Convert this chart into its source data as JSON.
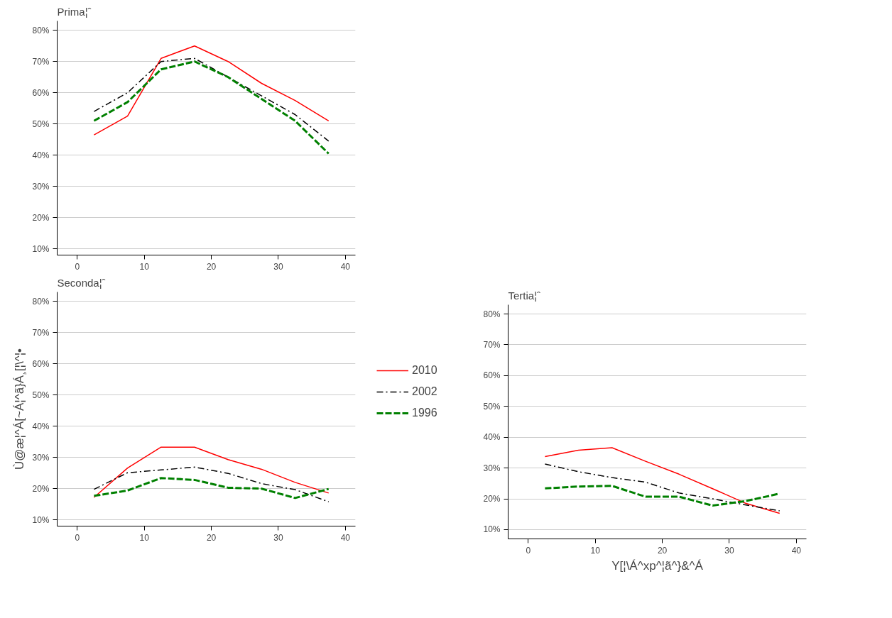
{
  "chart_data": [
    {
      "type": "line",
      "title": "Prima¦ˆ",
      "x": [
        2.5,
        7.5,
        12.5,
        17.5,
        22.5,
        27.5,
        32.5,
        37.5
      ],
      "xlim": [
        -3,
        41.5
      ],
      "xticks": [
        0,
        10,
        20,
        30,
        40
      ],
      "ylim": [
        8,
        83
      ],
      "yticks": [
        {
          "value": 10,
          "label": "10%"
        },
        {
          "value": 20,
          "label": "20%"
        },
        {
          "value": 30,
          "label": "30%"
        },
        {
          "value": 40,
          "label": "40%"
        },
        {
          "value": 50,
          "label": "50%"
        },
        {
          "value": 60,
          "label": "60%"
        },
        {
          "value": 70,
          "label": "70%"
        },
        {
          "value": 80,
          "label": "80%"
        }
      ],
      "grid": "y",
      "legend": false,
      "series": [
        {
          "color": "#ff0000",
          "line_style": "solid",
          "values": [
            46.5,
            52.5,
            71,
            75,
            70,
            63,
            57.5,
            51
          ]
        },
        {
          "color": "#000000",
          "line_style": "dashdot",
          "values": [
            54,
            60,
            70,
            71,
            65,
            59,
            53,
            44.5
          ]
        },
        {
          "color": "#008000",
          "line_style": "dashed",
          "values": [
            51,
            57,
            67.5,
            70,
            65,
            58,
            51,
            40.5
          ]
        }
      ]
    },
    {
      "type": "line",
      "title": "Seconda¦ˆ",
      "ylabel": "Ù@æ¦^Á[~Á¦^ã}Á¸[¦\\^¦•",
      "x": [
        2.5,
        7.5,
        12.5,
        17.5,
        22.5,
        27.5,
        32.5,
        37.5
      ],
      "xlim": [
        -3,
        41.5
      ],
      "xticks": [
        0,
        10,
        20,
        30,
        40
      ],
      "ylim": [
        8,
        83
      ],
      "yticks": [
        {
          "value": 10,
          "label": "10%"
        },
        {
          "value": 20,
          "label": "20%"
        },
        {
          "value": 30,
          "label": "30%"
        },
        {
          "value": 40,
          "label": "40%"
        },
        {
          "value": 50,
          "label": "50%"
        },
        {
          "value": 60,
          "label": "60%"
        },
        {
          "value": 70,
          "label": "70%"
        },
        {
          "value": 80,
          "label": "80%"
        }
      ],
      "grid": "y",
      "legend": "right",
      "series": [
        {
          "name": "2010",
          "color": "#ff0000",
          "line_style": "solid",
          "values": [
            17.2,
            26.6,
            33.3,
            33.3,
            29.3,
            26.2,
            22,
            18.6
          ]
        },
        {
          "name": "2002",
          "color": "#000000",
          "line_style": "dashdot",
          "values": [
            19.8,
            25.1,
            26,
            26.9,
            24.9,
            21.6,
            19.7,
            15.8
          ]
        },
        {
          "name": "1996",
          "color": "#008000",
          "line_style": "dashed",
          "values": [
            17.7,
            19.4,
            23.4,
            22.8,
            20.3,
            20,
            17,
            19.9
          ]
        }
      ]
    },
    {
      "type": "line",
      "title": "Tertia¦ˆ",
      "xlabel": "Y[¦\\Á^xp^¦ã^}&^Á",
      "x": [
        2.5,
        7.5,
        12.5,
        17.5,
        22.5,
        27.5,
        32.5,
        37.5
      ],
      "xlim": [
        -3,
        41.5
      ],
      "xticks": [
        0,
        10,
        20,
        30,
        40
      ],
      "ylim": [
        7,
        83
      ],
      "yticks": [
        {
          "value": 10,
          "label": "10%"
        },
        {
          "value": 20,
          "label": "20%"
        },
        {
          "value": 30,
          "label": "30%"
        },
        {
          "value": 40,
          "label": "40%"
        },
        {
          "value": 50,
          "label": "50%"
        },
        {
          "value": 60,
          "label": "60%"
        },
        {
          "value": 70,
          "label": "70%"
        },
        {
          "value": 80,
          "label": "80%"
        }
      ],
      "grid": "y",
      "legend": false,
      "series": [
        {
          "color": "#ff0000",
          "line_style": "solid",
          "values": [
            33.7,
            35.8,
            36.6,
            32.2,
            28,
            23.3,
            18.5,
            15.3
          ]
        },
        {
          "color": "#000000",
          "line_style": "dashdot",
          "values": [
            31.3,
            28.8,
            26.9,
            25.4,
            21.9,
            20,
            18,
            16.1
          ]
        },
        {
          "color": "#008000",
          "line_style": "dashed",
          "values": [
            23.4,
            24,
            24.2,
            20.7,
            20.7,
            17.8,
            19.3,
            21.7
          ]
        }
      ]
    }
  ]
}
